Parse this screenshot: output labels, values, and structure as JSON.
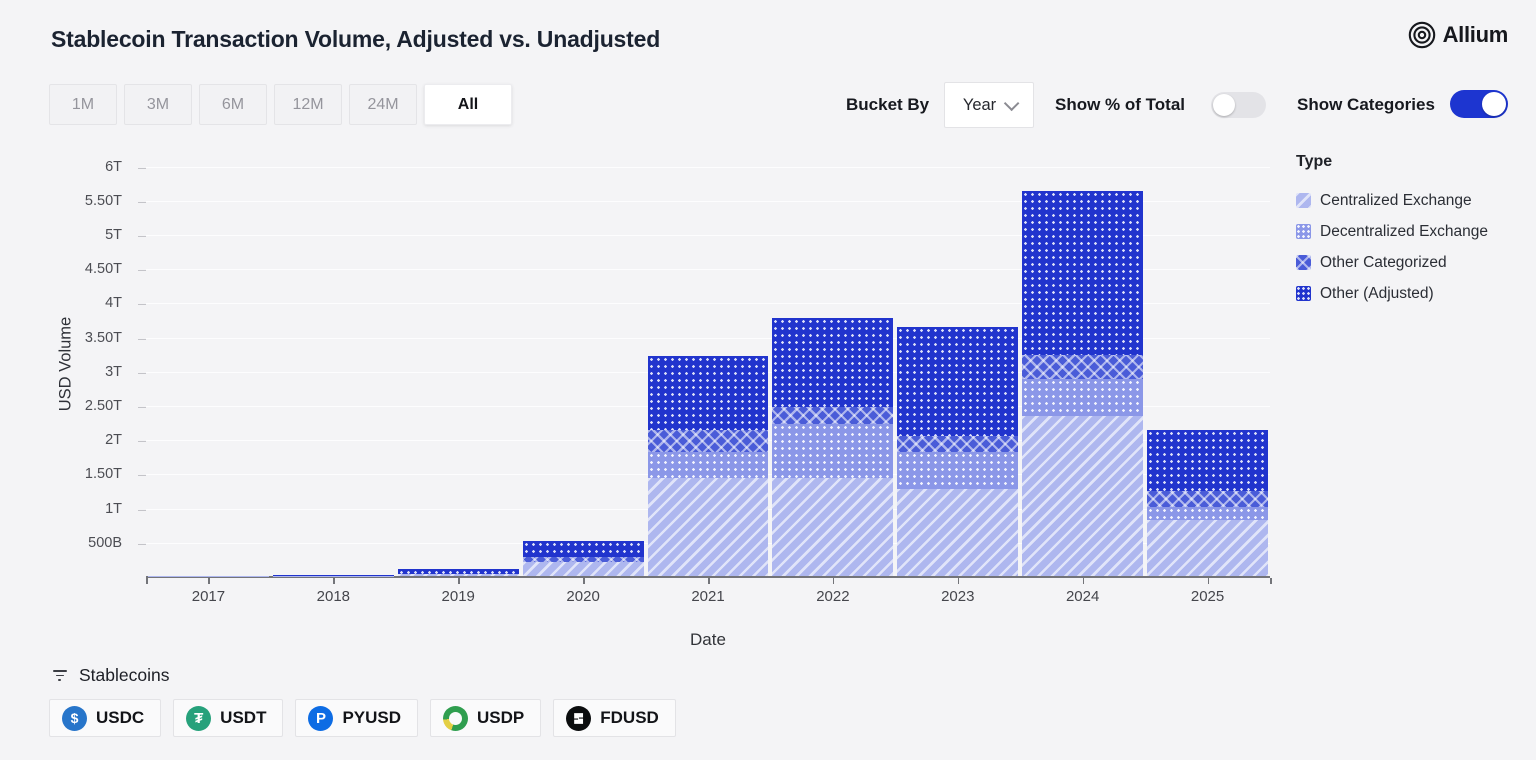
{
  "header": {
    "title": "Stablecoin Transaction Volume, Adjusted vs. Unadjusted",
    "brand": "Allium"
  },
  "controls": {
    "ranges": [
      "1M",
      "3M",
      "6M",
      "12M",
      "24M",
      "All"
    ],
    "active_range": "All",
    "bucket_by_label": "Bucket By",
    "bucket_value": "Year",
    "pct_toggle_label": "Show % of Total",
    "pct_toggle_on": false,
    "categories_toggle_label": "Show Categories",
    "categories_toggle_on": true,
    "toggle_on_color": "#1d35d0"
  },
  "legend": {
    "title": "Type",
    "items": [
      {
        "label": "Centralized Exchange",
        "pattern": "stripes",
        "color": "#aeb7ef"
      },
      {
        "label": "Decentralized Exchange",
        "pattern": "dots-light",
        "color": "#8b97e8"
      },
      {
        "label": "Other Categorized",
        "pattern": "cross",
        "color": "#4a5cd8"
      },
      {
        "label": "Other (Adjusted)",
        "pattern": "dots-dark",
        "color": "#2134cd"
      }
    ]
  },
  "chart_data": {
    "type": "bar",
    "stacked": true,
    "title": "Stablecoin Transaction Volume, Adjusted vs. Unadjusted",
    "xlabel": "Date",
    "ylabel": "USD Volume",
    "categories": [
      "2017",
      "2018",
      "2019",
      "2020",
      "2021",
      "2022",
      "2023",
      "2024",
      "2025"
    ],
    "units": "trillions USD",
    "series": [
      {
        "name": "Centralized Exchange",
        "pattern": "stripes",
        "values": [
          0.002,
          0.003,
          0.026,
          0.2,
          1.44,
          1.43,
          1.27,
          2.34,
          0.82
        ]
      },
      {
        "name": "Decentralized Exchange",
        "pattern": "dots-light",
        "values": [
          0.001,
          0.001,
          0.003,
          0.012,
          0.37,
          0.79,
          0.55,
          0.54,
          0.19
        ]
      },
      {
        "name": "Other Categorized",
        "pattern": "cross",
        "values": [
          0.001,
          0.002,
          0.007,
          0.072,
          0.33,
          0.25,
          0.22,
          0.35,
          0.24
        ]
      },
      {
        "name": "Other (Adjusted)",
        "pattern": "dots-dark",
        "values": [
          0.002,
          0.006,
          0.064,
          0.224,
          1.08,
          1.3,
          1.6,
          2.4,
          0.88
        ]
      }
    ],
    "totals_T": [
      0.006,
      0.012,
      0.1,
      0.51,
      3.22,
      3.77,
      3.64,
      5.63,
      2.13
    ],
    "ylim_T": [
      0,
      6.25
    ],
    "yticks": [
      "500B",
      "1T",
      "1.50T",
      "2T",
      "2.50T",
      "3T",
      "3.50T",
      "4T",
      "4.50T",
      "5T",
      "5.50T",
      "6T"
    ],
    "grid": true,
    "legend_position": "right"
  },
  "filters": {
    "label": "Stablecoins",
    "coins": [
      {
        "label": "USDC",
        "icon": "usdc",
        "color": "#2775ca"
      },
      {
        "label": "USDT",
        "icon": "usdt",
        "color": "#26a17b"
      },
      {
        "label": "PYUSD",
        "icon": "pyusd",
        "color": "#0d6ce4"
      },
      {
        "label": "USDP",
        "icon": "usdp",
        "color": "#2f9e4f"
      },
      {
        "label": "FDUSD",
        "icon": "fdusd",
        "color": "#0b0d0e"
      }
    ]
  }
}
